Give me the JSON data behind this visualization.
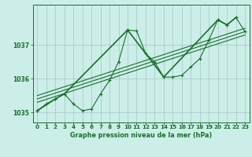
{
  "title": "Graphe pression niveau de la mer (hPa)",
  "bg_color": "#cceee8",
  "grid_color": "#aacccc",
  "line_color": "#1a6e2e",
  "xlim": [
    -0.5,
    23.5
  ],
  "ylim": [
    1034.7,
    1038.2
  ],
  "yticks": [
    1035,
    1036,
    1037
  ],
  "xticks": [
    0,
    1,
    2,
    3,
    4,
    5,
    6,
    7,
    8,
    9,
    10,
    11,
    12,
    13,
    14,
    15,
    16,
    17,
    18,
    19,
    20,
    21,
    22,
    23
  ],
  "series_main_x": [
    0,
    1,
    2,
    3,
    4,
    5,
    6,
    7,
    8,
    9,
    10,
    11,
    12,
    13,
    14,
    15,
    16,
    17,
    18,
    19,
    20,
    21,
    22,
    23
  ],
  "series_main_y": [
    1035.05,
    1035.25,
    1035.4,
    1035.55,
    1035.25,
    1035.05,
    1035.1,
    1035.55,
    1035.95,
    1036.5,
    1037.45,
    1037.42,
    1036.75,
    1036.5,
    1036.05,
    1036.05,
    1036.1,
    1036.35,
    1036.6,
    1037.15,
    1037.75,
    1037.6,
    1037.82,
    1037.4
  ],
  "series_sparse_x": [
    0,
    2,
    3,
    10,
    14,
    20,
    21,
    22
  ],
  "series_sparse_y": [
    1035.05,
    1035.4,
    1035.55,
    1037.45,
    1036.05,
    1037.75,
    1037.6,
    1037.82
  ],
  "trend1_x": [
    0,
    23
  ],
  "trend1_y": [
    1035.3,
    1037.3
  ],
  "trend2_x": [
    0,
    23
  ],
  "trend2_y": [
    1035.4,
    1037.4
  ],
  "trend3_x": [
    0,
    23
  ],
  "trend3_y": [
    1035.5,
    1037.5
  ]
}
